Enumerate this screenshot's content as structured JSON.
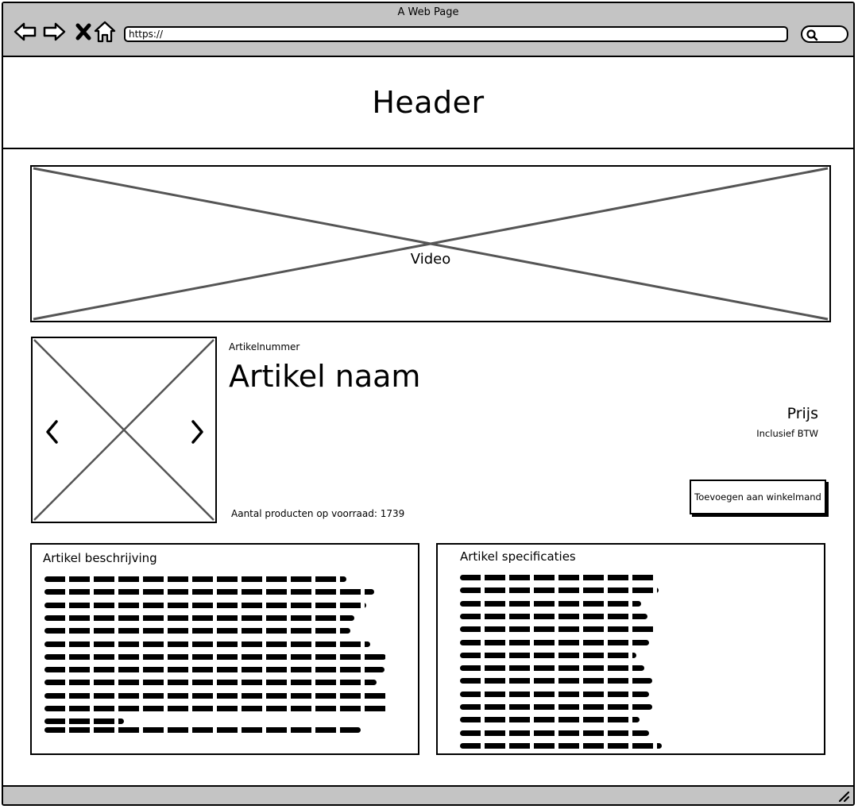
{
  "window": {
    "title": "A Web Page"
  },
  "browser": {
    "url": "https://"
  },
  "header": {
    "title": "Header"
  },
  "video": {
    "label": "Video"
  },
  "product": {
    "article_number": "Artikelnummer",
    "name": "Artikel naam",
    "price": "Prijs",
    "price_note": "Inclusief BTW",
    "stock": "Aantal producten op voorraad: 1739",
    "cart_button": "Toevoegen aan winkelmand"
  },
  "description_panel": {
    "title": "Artikel beschrijving"
  },
  "specs_panel": {
    "title": "Artikel specificaties"
  },
  "icons": {
    "back": "arrow-left-icon",
    "forward": "arrow-right-icon",
    "stop": "close-icon",
    "home": "home-icon",
    "search": "search-icon",
    "image_prev": "chevron-left-icon",
    "image_next": "chevron-right-icon",
    "resize": "resize-grip-icon"
  }
}
